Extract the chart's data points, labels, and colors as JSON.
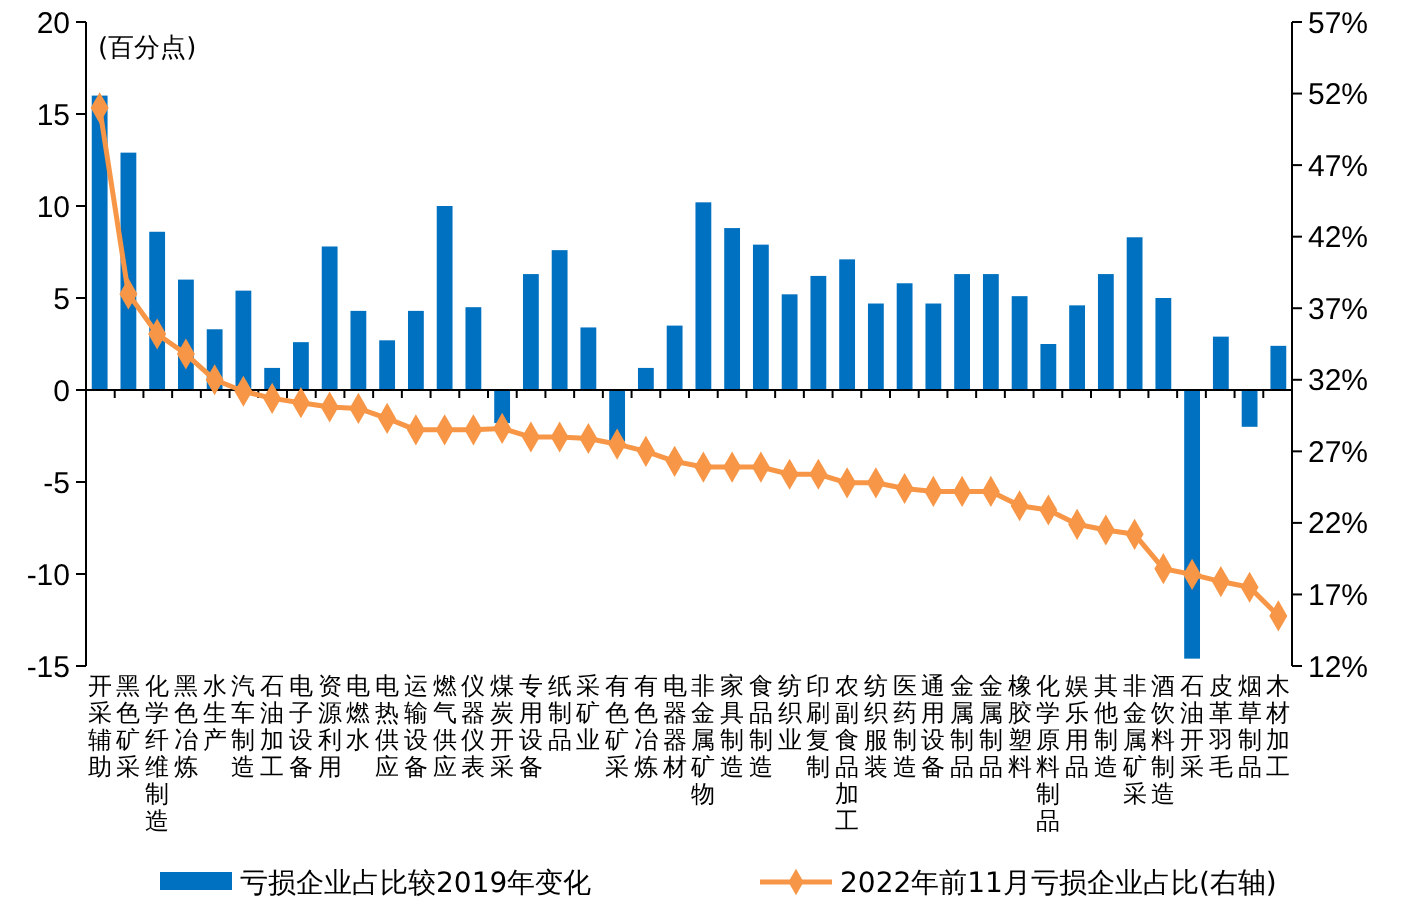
{
  "chart_data": {
    "type": "bar",
    "annotations": [
      "(百分点)"
    ],
    "categories": [
      "开采辅助",
      "黑色矿采",
      "化学纤维制造",
      "黑色冶炼",
      "水生产",
      "汽车制造",
      "石油加工",
      "电子设备",
      "资源利用",
      "电燃水",
      "电热供应",
      "运输设备",
      "燃气供应",
      "仪器仪表",
      "煤炭开采",
      "专用设备",
      "纸制品",
      "采矿业",
      "有色矿采",
      "有色冶炼",
      "电器器材",
      "非金属矿物",
      "家具制造",
      "食品制造",
      "纺织业",
      "印刷复制",
      "农副食品加工",
      "纺织服装",
      "医药制造",
      "通用设备",
      "金属制品",
      "金属制品",
      "橡胶塑料",
      "化学原料制品",
      "娱乐用品",
      "其他制造",
      "非金属矿采",
      "酒饮料制造",
      "石油开采",
      "皮革羽毛",
      "烟草制品",
      "木材加工"
    ],
    "series": [
      {
        "name": "亏损企业占比较2019年变化",
        "color": "#0070c0",
        "values": [
          16.0,
          12.9,
          8.6,
          6.0,
          3.3,
          5.4,
          1.2,
          2.6,
          7.8,
          4.3,
          2.7,
          4.3,
          10.0,
          4.5,
          -1.8,
          6.3,
          7.6,
          3.4,
          -2.8,
          1.2,
          3.5,
          10.2,
          8.8,
          7.9,
          5.2,
          6.2,
          7.1,
          4.7,
          5.8,
          4.7,
          6.3,
          6.3,
          5.1,
          2.5,
          4.6,
          6.3,
          8.3,
          5.0,
          -14.6,
          2.9,
          -2.0,
          2.4
        ]
      },
      {
        "name": "2022年前11月亏损企业占比(右轴)",
        "type": "line",
        "axis": "y2",
        "color": "#f79646",
        "marker": "diamond",
        "values": [
          51.0,
          38.0,
          35.2,
          33.8,
          32.0,
          31.2,
          30.7,
          30.4,
          30.1,
          30.0,
          29.3,
          28.5,
          28.5,
          28.5,
          28.6,
          28.0,
          28.0,
          27.9,
          27.5,
          27.0,
          26.3,
          25.9,
          25.9,
          25.9,
          25.4,
          25.4,
          24.8,
          24.8,
          24.4,
          24.2,
          24.2,
          24.2,
          23.2,
          22.9,
          21.9,
          21.5,
          21.2,
          18.8,
          18.4,
          17.9,
          17.5,
          15.5
        ]
      }
    ],
    "ylim": [
      -15,
      20
    ],
    "yticks": [
      -15,
      -10,
      -5,
      0,
      5,
      10,
      15,
      20
    ],
    "y2lim": [
      12,
      57
    ],
    "y2ticks": [
      {
        "value": 12,
        "label": "12%"
      },
      {
        "value": 17,
        "label": "17%"
      },
      {
        "value": 22,
        "label": "22%"
      },
      {
        "value": 27,
        "label": "27%"
      },
      {
        "value": 32,
        "label": "32%"
      },
      {
        "value": 37,
        "label": "37%"
      },
      {
        "value": 42,
        "label": "42%"
      },
      {
        "value": 47,
        "label": "47%"
      },
      {
        "value": 52,
        "label": "52%"
      },
      {
        "value": 57,
        "label": "57%"
      }
    ],
    "legend": "bottom"
  }
}
